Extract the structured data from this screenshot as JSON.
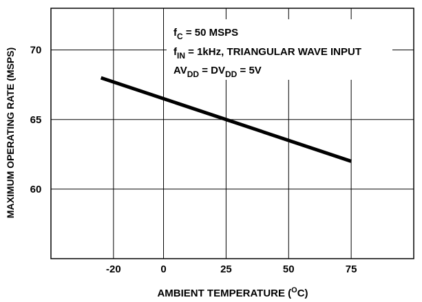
{
  "chart_data": {
    "type": "line",
    "xlabel": "AMBIENT TEMPERATURE (",
    "xlabel_sup": "O",
    "xlabel_tail": "C)",
    "ylabel": "MAXIMUM OPERATING RATE (MSPS)",
    "xlim": [
      -45,
      100
    ],
    "ylim": [
      55,
      73
    ],
    "x_ticks": [
      -20,
      0,
      25,
      50,
      75
    ],
    "y_ticks": [
      60,
      65,
      70
    ],
    "grid": true,
    "series": [
      {
        "x": [
          -25,
          75
        ],
        "y": [
          68,
          62
        ]
      }
    ],
    "annotations": [
      {
        "main": "f",
        "sub": "C",
        "tail": " = 50 MSPS"
      },
      {
        "main": "f",
        "sub": "IN",
        "tail": " = 1kHz, TRIANGULAR WAVE INPUT"
      },
      {
        "main": "AV",
        "sub": "DD",
        "tail": " = DV",
        "sub2": "DD",
        "tail2": " = 5V"
      }
    ]
  }
}
